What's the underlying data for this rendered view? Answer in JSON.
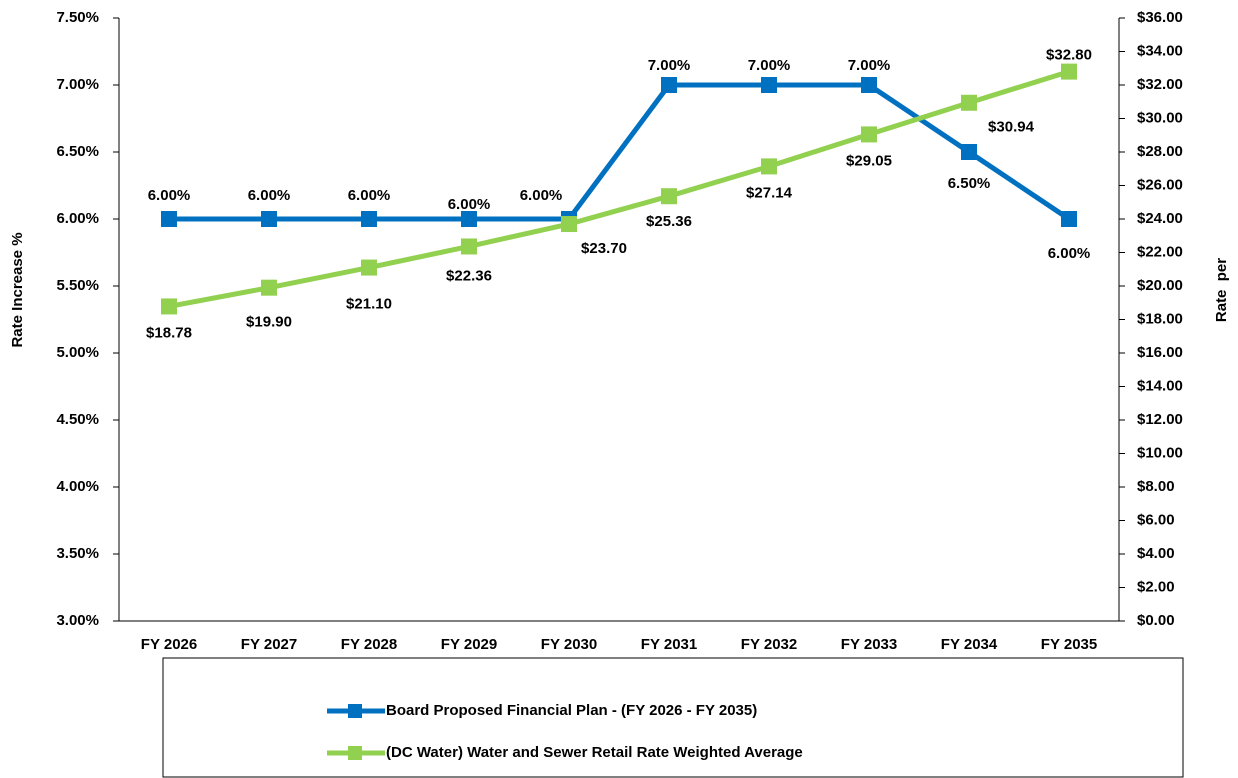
{
  "chart_data": {
    "type": "line",
    "y_label": "Rate Increase %",
    "y2_label": "Rate  per",
    "categories": [
      "FY 2026",
      "FY 2027",
      "FY 2028",
      "FY 2029",
      "FY 2030",
      "FY 2031",
      "FY 2032",
      "FY 2033",
      "FY 2034",
      "FY 2035"
    ],
    "series": [
      {
        "name": "Board Proposed Financial Plan - (FY 2026 - FY 2035)",
        "color": "#0070c0",
        "values": [
          6,
          6,
          6,
          6,
          6,
          7,
          7,
          7,
          6.5,
          6
        ],
        "value_labels": [
          "6.00%",
          "6.00%",
          "6.00%",
          "6.00%",
          "6.00%",
          "7.00%",
          "7.00%",
          "7.00%",
          "6.50%",
          "6.00%"
        ]
      },
      {
        "name": "(DC Water) Water and Sewer Retail Rate Weighted Average",
        "color": "#92d050",
        "axis": "y2",
        "values": [
          18.78,
          19.9,
          21.1,
          22.36,
          23.7,
          25.36,
          27.14,
          29.05,
          30.94,
          32.8
        ],
        "value_labels": [
          "$18.78",
          "$19.90",
          "$21.10",
          "$22.36",
          "$23.70",
          "$25.36",
          "$27.14",
          "$29.05",
          "$30.94",
          "$32.80"
        ]
      }
    ],
    "ylim": [
      3,
      7.5
    ],
    "yticks": [
      {
        "value": 3,
        "label": "3.00%"
      },
      {
        "value": 3.5,
        "label": "3.50%"
      },
      {
        "value": 4,
        "label": "4.00%"
      },
      {
        "value": 4.5,
        "label": "4.50%"
      },
      {
        "value": 5,
        "label": "5.00%"
      },
      {
        "value": 5.5,
        "label": "5.50%"
      },
      {
        "value": 6,
        "label": "6.00%"
      },
      {
        "value": 6.5,
        "label": "6.50%"
      },
      {
        "value": 7,
        "label": "7.00%"
      },
      {
        "value": 7.5,
        "label": "7.50%"
      }
    ],
    "y2lim": [
      0,
      36
    ],
    "y2ticks": [
      {
        "value": 0,
        "label": "$0.00"
      },
      {
        "value": 2,
        "label": "$2.00"
      },
      {
        "value": 4,
        "label": "$4.00"
      },
      {
        "value": 6,
        "label": "$6.00"
      },
      {
        "value": 8,
        "label": "$8.00"
      },
      {
        "value": 10,
        "label": "$10.00"
      },
      {
        "value": 12,
        "label": "$12.00"
      },
      {
        "value": 14,
        "label": "$14.00"
      },
      {
        "value": 16,
        "label": "$16.00"
      },
      {
        "value": 18,
        "label": "$18.00"
      },
      {
        "value": 20,
        "label": "$20.00"
      },
      {
        "value": 22,
        "label": "$22.00"
      },
      {
        "value": 24,
        "label": "$24.00"
      },
      {
        "value": 26,
        "label": "$26.00"
      },
      {
        "value": 28,
        "label": "$28.00"
      },
      {
        "value": 30,
        "label": "$30.00"
      },
      {
        "value": 32,
        "label": "$32.00"
      },
      {
        "value": 34,
        "label": "$34.00"
      },
      {
        "value": 36,
        "label": "$36.00"
      }
    ],
    "grid": false,
    "legend": "bottom"
  }
}
